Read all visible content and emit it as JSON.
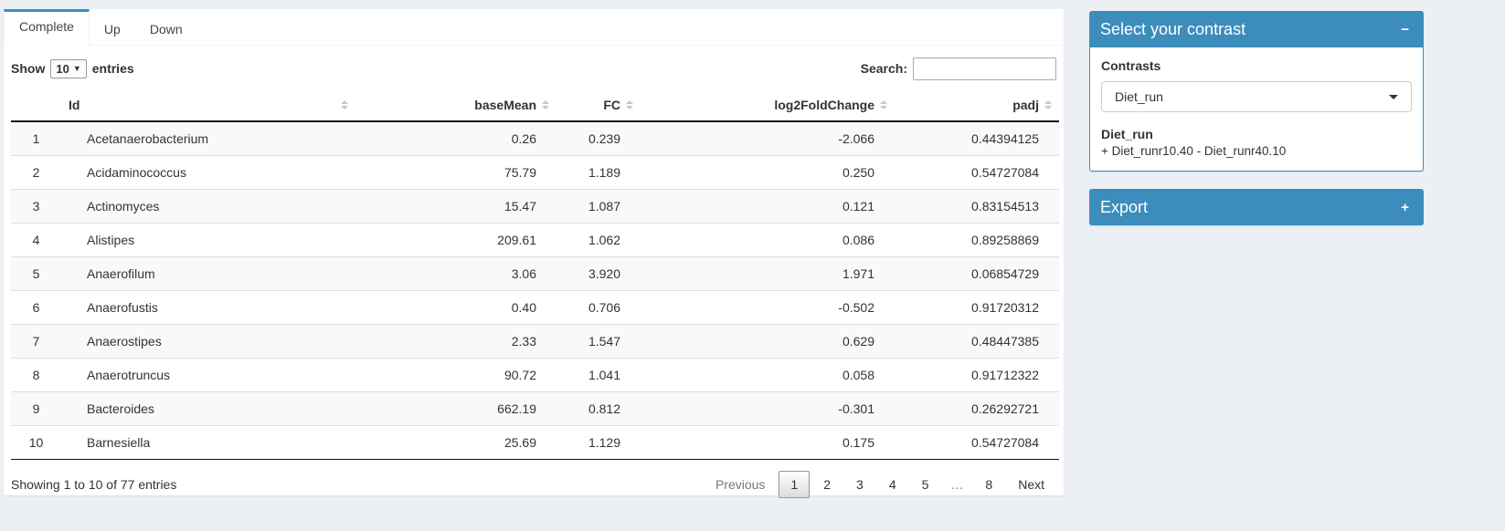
{
  "colors": {
    "primary": "#3c8dbc",
    "page_bg": "#ecf0f5",
    "stripe": "#f9f9f9"
  },
  "tabs": [
    {
      "label": "Complete",
      "active": true
    },
    {
      "label": "Up",
      "active": false
    },
    {
      "label": "Down",
      "active": false
    }
  ],
  "table": {
    "length_label_prefix": "Show",
    "length_value": "10",
    "length_label_suffix": "entries",
    "search_label": "Search:",
    "search_value": "",
    "columns": [
      "",
      "Id",
      "baseMean",
      "FC",
      "log2FoldChange",
      "padj"
    ],
    "rows": [
      [
        "1",
        "Acetanaerobacterium",
        "0.26",
        "0.239",
        "-2.066",
        "0.44394125"
      ],
      [
        "2",
        "Acidaminococcus",
        "75.79",
        "1.189",
        "0.250",
        "0.54727084"
      ],
      [
        "3",
        "Actinomyces",
        "15.47",
        "1.087",
        "0.121",
        "0.83154513"
      ],
      [
        "4",
        "Alistipes",
        "209.61",
        "1.062",
        "0.086",
        "0.89258869"
      ],
      [
        "5",
        "Anaerofilum",
        "3.06",
        "3.920",
        "1.971",
        "0.06854729"
      ],
      [
        "6",
        "Anaerofustis",
        "0.40",
        "0.706",
        "-0.502",
        "0.91720312"
      ],
      [
        "7",
        "Anaerostipes",
        "2.33",
        "1.547",
        "0.629",
        "0.48447385"
      ],
      [
        "8",
        "Anaerotruncus",
        "90.72",
        "1.041",
        "0.058",
        "0.91712322"
      ],
      [
        "9",
        "Bacteroides",
        "662.19",
        "0.812",
        "-0.301",
        "0.26292721"
      ],
      [
        "10",
        "Barnesiella",
        "25.69",
        "1.129",
        "0.175",
        "0.54727084"
      ]
    ],
    "info": "Showing 1 to 10 of 77 entries",
    "pagination": {
      "previous": "Previous",
      "pages": [
        "1",
        "2",
        "3",
        "4",
        "5",
        "…",
        "8"
      ],
      "current": "1",
      "next": "Next"
    }
  },
  "contrast_box": {
    "title": "Select your contrast",
    "collapse_icon": "−",
    "label": "Contrasts",
    "selected": "Diet_run",
    "detail_title": "Diet_run",
    "detail_text": "+ Diet_runr10.40 - Diet_runr40.10"
  },
  "export_box": {
    "title": "Export",
    "collapse_icon": "+"
  }
}
